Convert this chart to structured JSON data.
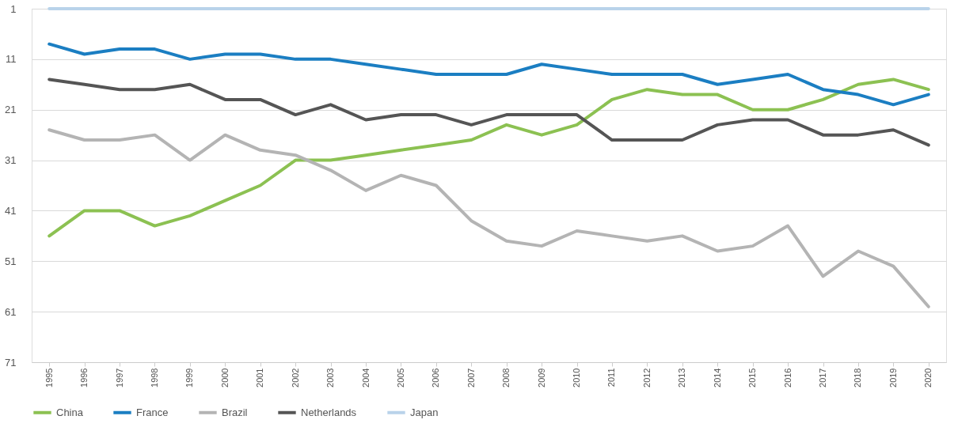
{
  "chart_data": {
    "type": "line",
    "categories": [
      "1995",
      "1996",
      "1997",
      "1998",
      "1999",
      "2000",
      "2001",
      "2002",
      "2003",
      "2004",
      "2005",
      "2006",
      "2007",
      "2008",
      "2009",
      "2010",
      "2011",
      "2012",
      "2013",
      "2014",
      "2015",
      "2016",
      "2017",
      "2018",
      "2019",
      "2020"
    ],
    "series": [
      {
        "name": "China",
        "color": "#8cc152",
        "values": [
          46,
          41,
          41,
          44,
          42,
          39,
          36,
          31,
          31,
          30,
          29,
          28,
          27,
          24,
          26,
          24,
          19,
          17,
          18,
          18,
          21,
          21,
          19,
          16,
          15,
          17
        ]
      },
      {
        "name": "France",
        "color": "#1b7ec2",
        "values": [
          8,
          10,
          9,
          9,
          11,
          10,
          10,
          11,
          11,
          12,
          13,
          14,
          14,
          14,
          12,
          13,
          14,
          14,
          14,
          16,
          15,
          14,
          17,
          18,
          20,
          18
        ]
      },
      {
        "name": "Brazil",
        "color": "#b4b4b4",
        "values": [
          25,
          27,
          27,
          26,
          31,
          26,
          29,
          30,
          33,
          37,
          34,
          36,
          43,
          47,
          48,
          45,
          46,
          47,
          46,
          49,
          48,
          44,
          54,
          49,
          52,
          60
        ]
      },
      {
        "name": "Netherlands",
        "color": "#555555",
        "values": [
          15,
          16,
          17,
          17,
          16,
          19,
          19,
          22,
          20,
          23,
          22,
          22,
          24,
          22,
          22,
          22,
          27,
          27,
          27,
          24,
          23,
          23,
          26,
          26,
          25,
          28
        ]
      },
      {
        "name": "Japan",
        "color": "#b9d3ea",
        "values": [
          1,
          1,
          1,
          1,
          1,
          1,
          1,
          1,
          1,
          1,
          1,
          1,
          1,
          1,
          1,
          1,
          1,
          1,
          1,
          1,
          1,
          1,
          1,
          1,
          1,
          1
        ]
      }
    ],
    "ylim": [
      71,
      1
    ],
    "yticks": [
      1,
      11,
      21,
      31,
      41,
      51,
      61,
      71
    ],
    "grid": "y",
    "legend": "bottom",
    "marker": "none",
    "line_style": "solid"
  }
}
